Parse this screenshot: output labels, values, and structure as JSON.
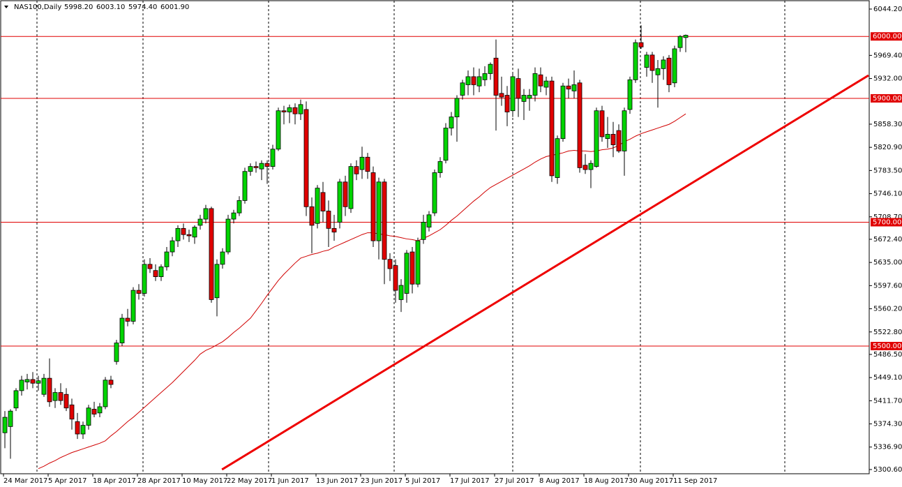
{
  "chart_data": {
    "type": "candlestick",
    "title": "NAS100,Daily",
    "header_values": [
      5998.2,
      6003.1,
      5974.4,
      6001.9
    ],
    "header_value_labels": [
      "5998.20",
      "6003.10",
      "5974.40",
      "6001.90"
    ],
    "categories": [
      "24 Mar 2017",
      null,
      null,
      null,
      null,
      null,
      null,
      null,
      "5 Apr 2017",
      null,
      null,
      null,
      null,
      null,
      null,
      null,
      "18 Apr 2017",
      null,
      null,
      null,
      null,
      null,
      null,
      null,
      "28 Apr 2017",
      null,
      null,
      null,
      null,
      null,
      null,
      null,
      "10 May 2017",
      null,
      null,
      null,
      null,
      null,
      null,
      null,
      "22 May 2017",
      null,
      null,
      null,
      null,
      null,
      null,
      null,
      "1 Jun 2017",
      null,
      null,
      null,
      null,
      null,
      null,
      null,
      "13 Jun 2017",
      null,
      null,
      null,
      null,
      null,
      null,
      null,
      "23 Jun 2017",
      null,
      null,
      null,
      null,
      null,
      null,
      null,
      "5 Jul 2017",
      null,
      null,
      null,
      null,
      null,
      null,
      null,
      "17 Jul 2017",
      null,
      null,
      null,
      null,
      null,
      null,
      null,
      "27 Jul 2017",
      null,
      null,
      null,
      null,
      null,
      null,
      null,
      "8 Aug 2017",
      null,
      null,
      null,
      null,
      null,
      null,
      null,
      "18 Aug 2017",
      null,
      null,
      null,
      null,
      null,
      null,
      null,
      "30 Aug 2017",
      null,
      null,
      null,
      null,
      null,
      null,
      null,
      "11 Sep 2017",
      null,
      null
    ],
    "ohlc": [
      [
        5360,
        5395,
        5335,
        5385
      ],
      [
        5370,
        5398,
        5318,
        5395
      ],
      [
        5400,
        5432,
        5395,
        5428
      ],
      [
        5428,
        5452,
        5420,
        5445
      ],
      [
        5442,
        5455,
        5430,
        5446
      ],
      [
        5446,
        5458,
        5432,
        5440
      ],
      [
        5440,
        5452,
        5428,
        5444
      ],
      [
        5422,
        5455,
        5418,
        5448
      ],
      [
        5448,
        5480,
        5402,
        5410
      ],
      [
        5412,
        5432,
        5400,
        5425
      ],
      [
        5425,
        5440,
        5405,
        5412
      ],
      [
        5422,
        5432,
        5395,
        5400
      ],
      [
        5405,
        5415,
        5365,
        5382
      ],
      [
        5378,
        5392,
        5350,
        5358
      ],
      [
        5358,
        5378,
        5350,
        5372
      ],
      [
        5372,
        5405,
        5365,
        5400
      ],
      [
        5398,
        5410,
        5385,
        5390
      ],
      [
        5392,
        5408,
        5385,
        5402
      ],
      [
        5402,
        5450,
        5398,
        5445
      ],
      [
        5445,
        5452,
        5432,
        5438
      ],
      [
        5475,
        5510,
        5470,
        5505
      ],
      [
        5505,
        5552,
        5500,
        5545
      ],
      [
        5545,
        5560,
        5532,
        5540
      ],
      [
        5540,
        5595,
        5535,
        5590
      ],
      [
        5590,
        5600,
        5575,
        5585
      ],
      [
        5585,
        5640,
        5580,
        5632
      ],
      [
        5632,
        5642,
        5618,
        5625
      ],
      [
        5622,
        5632,
        5605,
        5612
      ],
      [
        5612,
        5632,
        5605,
        5628
      ],
      [
        5628,
        5660,
        5622,
        5652
      ],
      [
        5652,
        5676,
        5645,
        5670
      ],
      [
        5670,
        5695,
        5660,
        5690
      ],
      [
        5690,
        5698,
        5672,
        5680
      ],
      [
        5680,
        5688,
        5668,
        5678
      ],
      [
        5676,
        5695,
        5665,
        5692
      ],
      [
        5695,
        5712,
        5688,
        5705
      ],
      [
        5705,
        5728,
        5698,
        5722
      ],
      [
        5722,
        5725,
        5570,
        5575
      ],
      [
        5578,
        5640,
        5548,
        5632
      ],
      [
        5632,
        5658,
        5625,
        5652
      ],
      [
        5652,
        5712,
        5648,
        5705
      ],
      [
        5705,
        5720,
        5698,
        5715
      ],
      [
        5715,
        5742,
        5710,
        5735
      ],
      [
        5735,
        5788,
        5730,
        5782
      ],
      [
        5782,
        5795,
        5775,
        5790
      ],
      [
        5790,
        5798,
        5780,
        5788
      ],
      [
        5786,
        5800,
        5768,
        5795
      ],
      [
        5795,
        5800,
        5762,
        5790
      ],
      [
        5790,
        5825,
        5785,
        5818
      ],
      [
        5818,
        5885,
        5815,
        5880
      ],
      [
        5880,
        5888,
        5858,
        5878
      ],
      [
        5878,
        5890,
        5860,
        5885
      ],
      [
        5885,
        5892,
        5858,
        5875
      ],
      [
        5875,
        5898,
        5865,
        5890
      ],
      [
        5882,
        5895,
        5710,
        5725
      ],
      [
        5725,
        5740,
        5650,
        5695
      ],
      [
        5698,
        5760,
        5690,
        5755
      ],
      [
        5748,
        5765,
        5700,
        5718
      ],
      [
        5718,
        5735,
        5660,
        5690
      ],
      [
        5690,
        5712,
        5670,
        5684
      ],
      [
        5700,
        5770,
        5690,
        5765
      ],
      [
        5765,
        5775,
        5710,
        5725
      ],
      [
        5722,
        5795,
        5715,
        5790
      ],
      [
        5790,
        5800,
        5768,
        5778
      ],
      [
        5785,
        5822,
        5770,
        5805
      ],
      [
        5805,
        5812,
        5770,
        5782
      ],
      [
        5780,
        5790,
        5660,
        5670
      ],
      [
        5670,
        5772,
        5640,
        5765
      ],
      [
        5765,
        5770,
        5600,
        5640
      ],
      [
        5640,
        5650,
        5605,
        5625
      ],
      [
        5630,
        5640,
        5570,
        5590
      ],
      [
        5575,
        5608,
        5555,
        5598
      ],
      [
        5585,
        5655,
        5570,
        5650
      ],
      [
        5652,
        5660,
        5585,
        5600
      ],
      [
        5600,
        5675,
        5595,
        5670
      ],
      [
        5672,
        5712,
        5665,
        5700
      ],
      [
        5692,
        5718,
        5685,
        5712
      ],
      [
        5715,
        5785,
        5710,
        5780
      ],
      [
        5780,
        5805,
        5772,
        5798
      ],
      [
        5800,
        5860,
        5795,
        5852
      ],
      [
        5852,
        5878,
        5840,
        5870
      ],
      [
        5870,
        5905,
        5830,
        5900
      ],
      [
        5905,
        5930,
        5898,
        5925
      ],
      [
        5922,
        5945,
        5905,
        5935
      ],
      [
        5935,
        5950,
        5905,
        5922
      ],
      [
        5920,
        5948,
        5910,
        5935
      ],
      [
        5930,
        5952,
        5920,
        5940
      ],
      [
        5940,
        5958,
        5930,
        5955
      ],
      [
        5965,
        5995,
        5848,
        5905
      ],
      [
        5908,
        5935,
        5888,
        5902
      ],
      [
        5905,
        5920,
        5855,
        5878
      ],
      [
        5880,
        5940,
        5870,
        5935
      ],
      [
        5932,
        5948,
        5870,
        5900
      ],
      [
        5895,
        5915,
        5865,
        5905
      ],
      [
        5900,
        5915,
        5880,
        5905
      ],
      [
        5905,
        5950,
        5895,
        5940
      ],
      [
        5938,
        5950,
        5910,
        5920
      ],
      [
        5918,
        5935,
        5905,
        5928
      ],
      [
        5928,
        5935,
        5765,
        5775
      ],
      [
        5772,
        5840,
        5762,
        5835
      ],
      [
        5835,
        5925,
        5830,
        5920
      ],
      [
        5920,
        5932,
        5900,
        5915
      ],
      [
        5912,
        5945,
        5900,
        5922
      ],
      [
        5925,
        5930,
        5780,
        5788
      ],
      [
        5792,
        5810,
        5778,
        5785
      ],
      [
        5785,
        5800,
        5755,
        5795
      ],
      [
        5790,
        5885,
        5788,
        5880
      ],
      [
        5880,
        5888,
        5830,
        5838
      ],
      [
        5835,
        5870,
        5820,
        5842
      ],
      [
        5842,
        5862,
        5805,
        5825
      ],
      [
        5848,
        5858,
        5812,
        5815
      ],
      [
        5815,
        5885,
        5775,
        5880
      ],
      [
        5882,
        5935,
        5875,
        5930
      ],
      [
        5930,
        5995,
        5925,
        5990
      ],
      [
        5990,
        6018,
        5980,
        5983
      ],
      [
        5950,
        5975,
        5935,
        5970
      ],
      [
        5970,
        5975,
        5925,
        5945
      ],
      [
        5938,
        5962,
        5885,
        5948
      ],
      [
        5948,
        5968,
        5930,
        5962
      ],
      [
        5965,
        5970,
        5910,
        5922
      ],
      [
        5925,
        5985,
        5918,
        5980
      ],
      [
        5982,
        6002,
        5975,
        6000
      ],
      [
        5998.2,
        6003.1,
        5974.4,
        6001.9
      ]
    ],
    "moving_average": [
      null,
      null,
      null,
      null,
      null,
      null,
      5302,
      5306,
      5311,
      5315,
      5320,
      5324,
      5328,
      5331,
      5334,
      5337,
      5340,
      5343,
      5347,
      5355,
      5362,
      5370,
      5378,
      5385,
      5393,
      5401,
      5409,
      5417,
      5425,
      5433,
      5441,
      5450,
      5459,
      5468,
      5477,
      5487,
      5493,
      5497,
      5502,
      5507,
      5514,
      5522,
      5529,
      5537,
      5545,
      5557,
      5569,
      5582,
      5594,
      5606,
      5616,
      5625,
      5634,
      5642,
      5645,
      5648,
      5650,
      5653,
      5655,
      5660,
      5664,
      5668,
      5672,
      5676,
      5680,
      5683,
      5683,
      5681,
      5680,
      5678,
      5677,
      5675,
      5673,
      5672,
      5670,
      5674,
      5678,
      5683,
      5688,
      5695,
      5703,
      5710,
      5718,
      5726,
      5734,
      5741,
      5749,
      5756,
      5761,
      5766,
      5771,
      5776,
      5781,
      5786,
      5791,
      5797,
      5802,
      5806,
      5808,
      5810,
      5812,
      5815,
      5816,
      5815,
      5815,
      5814,
      5815,
      5817,
      5818,
      5820,
      5824,
      5830,
      5834,
      5839,
      5843,
      5846,
      5849,
      5852,
      5855,
      5858,
      5863,
      5869,
      5875
    ],
    "trendline": [
      [
        38.9,
        5300.6
      ],
      [
        154.75,
        5937.1
      ]
    ],
    "levels": [
      {
        "value": 6000,
        "label": "6000.00"
      },
      {
        "value": 5900,
        "label": "5900.00"
      },
      {
        "value": 5700,
        "label": "5700.00"
      },
      {
        "value": 5500,
        "label": "5500.00"
      }
    ],
    "ylim": [
      5293.8,
      6057.7
    ],
    "yticks": [
      {
        "value": 6044.2,
        "label": "6044.20"
      },
      {
        "value": 5969.4,
        "label": "5969.40"
      },
      {
        "value": 5932.0,
        "label": "5932.00"
      },
      {
        "value": 5858.3,
        "label": "5858.30"
      },
      {
        "value": 5820.9,
        "label": "5820.90"
      },
      {
        "value": 5783.5,
        "label": "5783.50"
      },
      {
        "value": 5746.1,
        "label": "5746.10"
      },
      {
        "value": 5708.7,
        "label": "5708.70"
      },
      {
        "value": 5672.4,
        "label": "5672.40"
      },
      {
        "value": 5635.0,
        "label": "5635.00"
      },
      {
        "value": 5597.6,
        "label": "5597.60"
      },
      {
        "value": 5560.2,
        "label": "5560.20"
      },
      {
        "value": 5522.8,
        "label": "5522.80"
      },
      {
        "value": 5486.5,
        "label": "5486.50"
      },
      {
        "value": 5449.1,
        "label": "5449.10"
      },
      {
        "value": 5411.7,
        "label": "5411.70"
      },
      {
        "value": 5374.3,
        "label": "5374.30"
      },
      {
        "value": 5336.9,
        "label": "5336.90"
      },
      {
        "value": 5300.6,
        "label": "5300.60"
      }
    ],
    "up_color": "#00d400",
    "down_color": "#e00000",
    "ma_color": "#d00000",
    "trend_color": "#ee0000",
    "level_color": "#e00000"
  }
}
